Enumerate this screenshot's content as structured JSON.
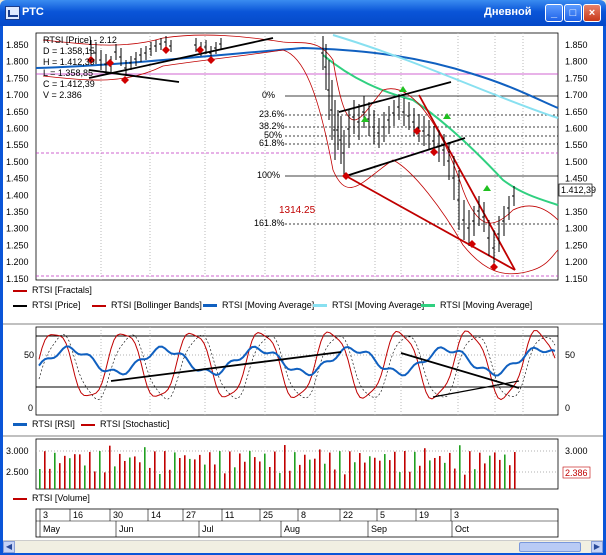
{
  "window": {
    "title": "РТС",
    "timeframe": "Дневной",
    "buttons": {
      "minimize": "_",
      "maximize": "□",
      "close": "×"
    }
  },
  "price_panel": {
    "ohlc": [
      "RTSI [Price] - 2.12",
      "D = 1.358,15",
      "H = 1.412,39",
      "L = 1.358,85",
      "C = 1.412,39",
      "V = 2.386"
    ],
    "y_ticks": [
      "1.850",
      "1.800",
      "1.750",
      "1.700",
      "1.650",
      "1.600",
      "1.550",
      "1.500",
      "1.450",
      "1.400",
      "1.350",
      "1.300",
      "1.250",
      "1.200",
      "1.150"
    ],
    "right_ticks": [
      "1.850",
      "1.800",
      "1.750",
      "1.700",
      "1.650",
      "1.600",
      "1.550",
      "1.500",
      "1.450",
      "1.350",
      "1.300",
      "1.250",
      "1.200",
      "1.150"
    ],
    "last_price": "1.412,39",
    "fib_labels": [
      "0%",
      "23.6%",
      "38.2%",
      "50%",
      "61.8%",
      "100%",
      "161.8%"
    ],
    "target_label": "1314.25"
  },
  "legend_price": [
    {
      "label": "RTSI [Fractals]",
      "color": "#c00000"
    },
    {
      "label": "RTSI [Price]",
      "color": "#000000"
    },
    {
      "label": "RTSI [Bollinger Bands]",
      "color": "#c00000"
    },
    {
      "label": "RTSI [Moving Average]",
      "color": "#1060c0"
    },
    {
      "label": "RTSI [Moving Average]",
      "color": "#88e0f0"
    },
    {
      "label": "RTSI [Moving Average]",
      "color": "#30d080"
    }
  ],
  "osc_panel": {
    "y_ticks": [
      "50",
      "0"
    ]
  },
  "legend_osc": [
    {
      "label": "RTSI [RSI]",
      "color": "#1060c0"
    },
    {
      "label": "RTSI [Stochastic]",
      "color": "#c00000"
    }
  ],
  "volume_panel": {
    "y_ticks": [
      "3.000",
      "2.500"
    ],
    "right_ticks": [
      "3.000",
      "2.386"
    ]
  },
  "legend_volume": [
    {
      "label": "RTSI [Volume]",
      "color": "#c00000"
    }
  ],
  "x_axis": {
    "days": [
      "3",
      "16",
      "30",
      "14",
      "27",
      "11",
      "25",
      "8",
      "22",
      "5",
      "19",
      "3"
    ],
    "months": [
      "May",
      "Jun",
      "Jul",
      "Aug",
      "Sep",
      "Oct"
    ]
  }
}
